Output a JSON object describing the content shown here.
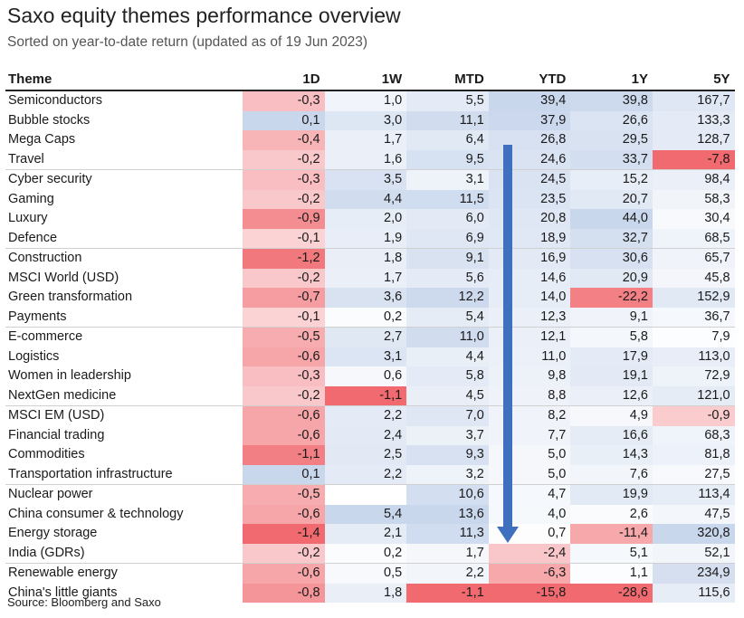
{
  "chart_data": {
    "type": "table",
    "title": "Saxo equity themes performance overview",
    "subtitle": "Sorted on year-to-date return (updated as of 19 Jun 2023)",
    "source": "Source: Bloomberg and Saxo",
    "columns": [
      "Theme",
      "1D",
      "1W",
      "MTD",
      "YTD",
      "1Y",
      "5Y"
    ],
    "rows": [
      {
        "theme": "Semiconductors",
        "values": [
          "-0,3",
          "1,0",
          "5,5",
          "39,4",
          "39,8",
          "167,7"
        ]
      },
      {
        "theme": "Bubble stocks",
        "values": [
          "0,1",
          "3,0",
          "11,1",
          "37,9",
          "26,6",
          "133,3"
        ]
      },
      {
        "theme": "Mega Caps",
        "values": [
          "-0,4",
          "1,7",
          "6,4",
          "26,8",
          "29,5",
          "128,7"
        ]
      },
      {
        "theme": "Travel",
        "values": [
          "-0,2",
          "1,6",
          "9,5",
          "24,6",
          "33,7",
          "-7,8"
        ]
      },
      {
        "theme": "Cyber security",
        "values": [
          "-0,3",
          "3,5",
          "3,1",
          "24,5",
          "15,2",
          "98,4"
        ]
      },
      {
        "theme": "Gaming",
        "values": [
          "-0,2",
          "4,4",
          "11,5",
          "23,5",
          "20,7",
          "58,3"
        ]
      },
      {
        "theme": "Luxury",
        "values": [
          "-0,9",
          "2,0",
          "6,0",
          "20,8",
          "44,0",
          "30,4"
        ]
      },
      {
        "theme": "Defence",
        "values": [
          "-0,1",
          "1,9",
          "6,9",
          "18,9",
          "32,7",
          "68,5"
        ]
      },
      {
        "theme": "Construction",
        "values": [
          "-1,2",
          "1,8",
          "9,1",
          "16,9",
          "30,6",
          "65,7"
        ]
      },
      {
        "theme": "MSCI World (USD)",
        "values": [
          "-0,2",
          "1,7",
          "5,6",
          "14,6",
          "20,9",
          "45,8"
        ]
      },
      {
        "theme": "Green transformation",
        "values": [
          "-0,7",
          "3,6",
          "12,2",
          "14,0",
          "-22,2",
          "152,9"
        ]
      },
      {
        "theme": "Payments",
        "values": [
          "-0,1",
          "0,2",
          "5,4",
          "12,3",
          "9,1",
          "36,7"
        ]
      },
      {
        "theme": "E-commerce",
        "values": [
          "-0,5",
          "2,7",
          "11,0",
          "12,1",
          "5,8",
          "7,9"
        ]
      },
      {
        "theme": "Logistics",
        "values": [
          "-0,6",
          "3,1",
          "4,4",
          "11,0",
          "17,9",
          "113,0"
        ]
      },
      {
        "theme": "Women in leadership",
        "values": [
          "-0,3",
          "0,6",
          "5,8",
          "9,8",
          "19,1",
          "72,9"
        ]
      },
      {
        "theme": "NextGen medicine",
        "values": [
          "-0,2",
          "-1,1",
          "4,5",
          "8,8",
          "12,6",
          "121,0"
        ]
      },
      {
        "theme": "MSCI EM (USD)",
        "values": [
          "-0,6",
          "2,2",
          "7,0",
          "8,2",
          "4,9",
          "-0,9"
        ]
      },
      {
        "theme": "Financial trading",
        "values": [
          "-0,6",
          "2,4",
          "3,7",
          "7,7",
          "16,6",
          "68,3"
        ]
      },
      {
        "theme": "Commodities",
        "values": [
          "-1,1",
          "2,5",
          "9,3",
          "5,0",
          "14,3",
          "81,8"
        ]
      },
      {
        "theme": "Transportation infrastructure",
        "values": [
          "0,1",
          "2,2",
          "3,2",
          "5,0",
          "7,6",
          "27,5"
        ]
      },
      {
        "theme": "Nuclear power",
        "values": [
          "-0,5",
          "",
          "10,6",
          "4,7",
          "19,9",
          "113,4"
        ]
      },
      {
        "theme": "China consumer & technology",
        "values": [
          "-0,6",
          "5,4",
          "13,6",
          "4,0",
          "2,6",
          "47,5"
        ]
      },
      {
        "theme": "Energy storage",
        "values": [
          "-1,4",
          "2,1",
          "11,3",
          "0,7",
          "-11,4",
          "320,8"
        ]
      },
      {
        "theme": "India (GDRs)",
        "values": [
          "-0,2",
          "0,2",
          "1,7",
          "-2,4",
          "5,1",
          "52,1"
        ]
      },
      {
        "theme": "Renewable energy",
        "values": [
          "-0,6",
          "0,5",
          "2,2",
          "-6,3",
          "1,1",
          "234,9"
        ]
      },
      {
        "theme": "China's little giants",
        "values": [
          "-0,8",
          "1,8",
          "-1,1",
          "-15,8",
          "-28,6",
          "115,6"
        ]
      }
    ],
    "row_separators_after": [
      3,
      7,
      11,
      15,
      19,
      23
    ],
    "colors": {
      "positive": "#b7c9e6",
      "negative": "#f06a6f",
      "arrow": "#3f6fbf"
    }
  }
}
